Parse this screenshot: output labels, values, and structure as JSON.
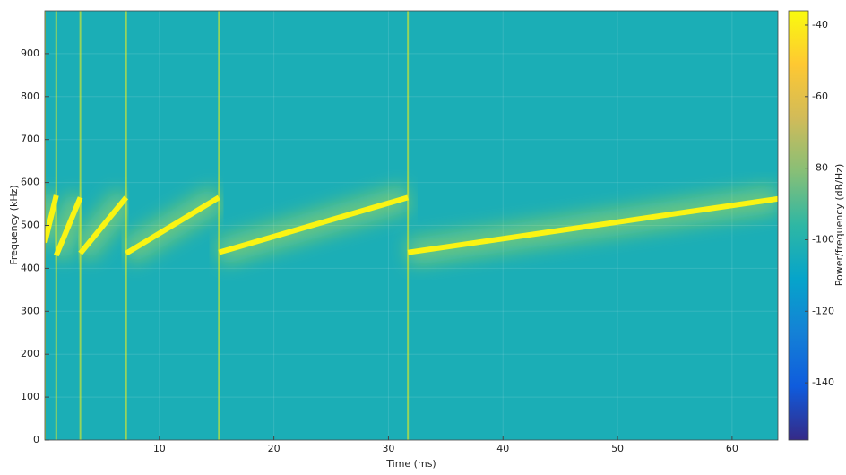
{
  "chart_data": {
    "type": "spectrogram",
    "xlabel": "Time (ms)",
    "ylabel": "Frequency (kHz)",
    "xlim": [
      0,
      64
    ],
    "ylim": [
      0,
      1000
    ],
    "xticks": [
      10,
      20,
      30,
      40,
      50,
      60
    ],
    "yticks": [
      0,
      100,
      200,
      300,
      400,
      500,
      600,
      700,
      800,
      900
    ],
    "grid": true,
    "colormap": [
      "#352a87",
      "#0f5cdd",
      "#1481d6",
      "#06a4ca",
      "#2eb7a4",
      "#87bf77",
      "#d1bb59",
      "#fec832",
      "#f9fb0e"
    ],
    "noise_level": -103,
    "colorbar": {
      "label": "Power/frequency (dB/Hz)",
      "clim": [
        -156,
        -36
      ],
      "ticks": [
        -40,
        -60,
        -80,
        -100,
        -120,
        -140
      ]
    },
    "series": [
      {
        "x": [
          0,
          1.0
        ],
        "values": [
          460,
          570
        ],
        "level": -38
      },
      {
        "x": [
          1.0,
          3.1
        ],
        "values": [
          430,
          565
        ],
        "level": -38
      },
      {
        "x": [
          3.1,
          7.1
        ],
        "values": [
          435,
          565
        ],
        "level": -38
      },
      {
        "x": [
          7.1,
          15.2
        ],
        "values": [
          435,
          565
        ],
        "level": -38
      },
      {
        "x": [
          15.2,
          31.7
        ],
        "values": [
          437,
          565
        ],
        "level": -38
      },
      {
        "x": [
          31.7,
          64
        ],
        "values": [
          437,
          562
        ],
        "level": -38
      }
    ]
  }
}
